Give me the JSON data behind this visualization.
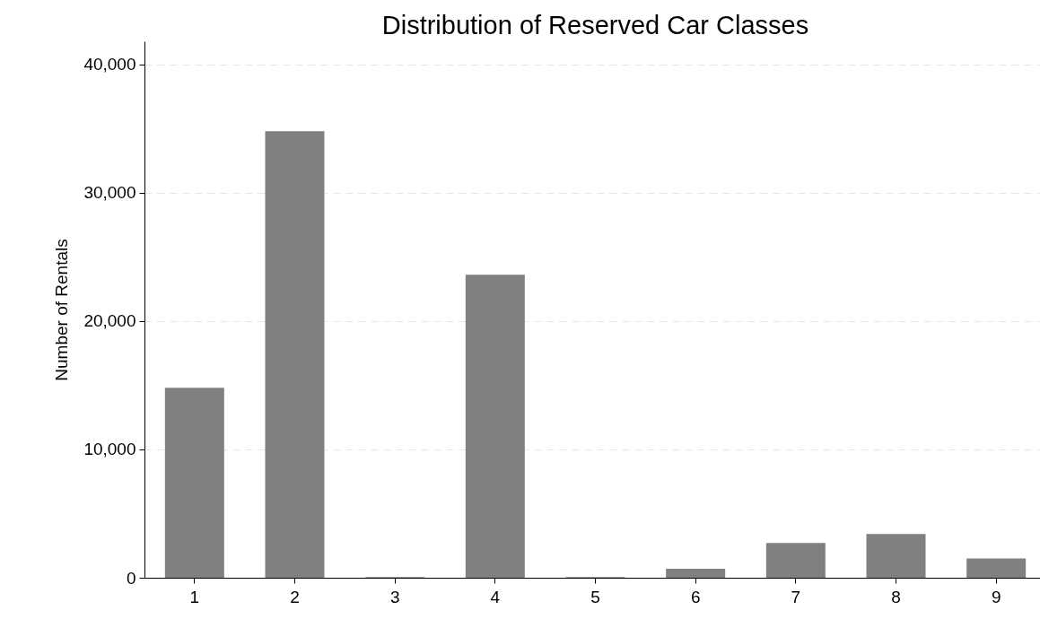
{
  "chart_data": {
    "type": "bar",
    "title": "Distribution of Reserved Car Classes",
    "ylabel": "Number of Rentals",
    "categories": [
      "1",
      "2",
      "3",
      "4",
      "5",
      "6",
      "7",
      "8",
      "9"
    ],
    "values": [
      14800,
      34800,
      50,
      23600,
      50,
      700,
      2700,
      3400,
      1500
    ],
    "color": "#808080",
    "ylim": [
      0,
      41800
    ],
    "yticks": [
      0,
      {
        "value": 10000,
        "label": "10,000"
      },
      {
        "value": 20000,
        "label": "20,000"
      },
      {
        "value": 30000,
        "label": "30,000"
      },
      {
        "value": 40000,
        "label": "40,000"
      }
    ],
    "grid": "y"
  }
}
